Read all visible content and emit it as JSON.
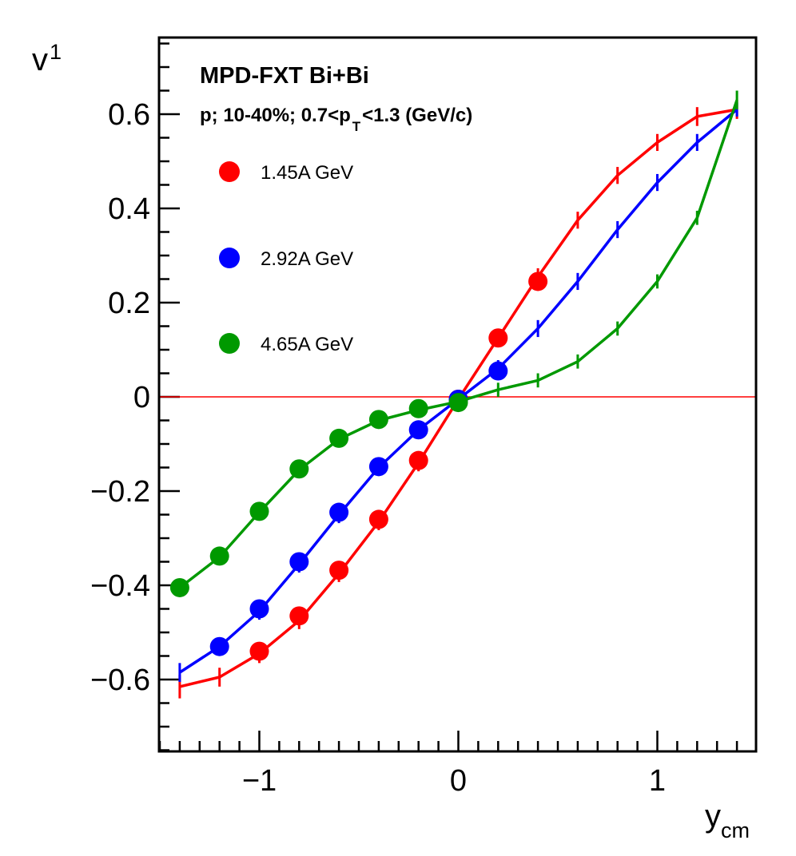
{
  "chart_data": {
    "type": "line",
    "title": "MPD-FXT Bi+Bi",
    "subtitle": {
      "prefix": "p; 10-40%; 0.7<p",
      "sub": "T",
      "suffix": "<1.3 (GeV/c)"
    },
    "xlabel": {
      "main": "y",
      "sub": "cm"
    },
    "ylabel": {
      "main": "v",
      "sub": "1"
    },
    "xlim": [
      -1.5,
      1.5
    ],
    "ylim": [
      -0.75,
      0.75
    ],
    "xticks": [
      -1,
      0,
      1
    ],
    "xtick_labels": [
      "−1",
      "0",
      "1"
    ],
    "yticks": [
      -0.6,
      -0.4,
      -0.2,
      0,
      0.2,
      0.4,
      0.6
    ],
    "ytick_labels": [
      "−0.6",
      "−0.4",
      "−0.2",
      "0",
      "0.2",
      "0.4",
      "0.6"
    ],
    "reference_line": {
      "y": 0,
      "color": "#ff0000"
    },
    "legend_position": "top-left",
    "series": [
      {
        "name": "1.45A GeV",
        "color": "#ff0000",
        "curve": {
          "x": [
            -1.4,
            -1.2,
            -1.0,
            -0.8,
            -0.6,
            -0.4,
            -0.2,
            0.0,
            0.2,
            0.4,
            0.6,
            0.8,
            1.0,
            1.2,
            1.4
          ],
          "y": [
            -0.615,
            -0.595,
            -0.545,
            -0.475,
            -0.375,
            -0.265,
            -0.14,
            -0.005,
            0.125,
            0.255,
            0.375,
            0.47,
            0.54,
            0.595,
            0.61
          ],
          "err": [
            0.025,
            0.02,
            0.02,
            0.018,
            0.018,
            0.018,
            0.018,
            0.015,
            0.018,
            0.018,
            0.018,
            0.018,
            0.018,
            0.02,
            0.02
          ]
        },
        "markers": {
          "x": [
            -1.0,
            -0.8,
            -0.6,
            -0.4,
            -0.2,
            0.0,
            0.2,
            0.4
          ],
          "y": [
            -0.54,
            -0.465,
            -0.368,
            -0.26,
            -0.135,
            -0.005,
            0.125,
            0.245
          ]
        }
      },
      {
        "name": "2.92A GeV",
        "color": "#0000ff",
        "curve": {
          "x": [
            -1.4,
            -1.2,
            -1.0,
            -0.8,
            -0.6,
            -0.4,
            -0.2,
            0.0,
            0.2,
            0.4,
            0.6,
            0.8,
            1.0,
            1.2,
            1.4
          ],
          "y": [
            -0.585,
            -0.53,
            -0.455,
            -0.355,
            -0.25,
            -0.15,
            -0.07,
            -0.005,
            0.06,
            0.145,
            0.245,
            0.355,
            0.455,
            0.54,
            0.61
          ],
          "err": [
            0.02,
            0.018,
            0.018,
            0.018,
            0.018,
            0.018,
            0.018,
            0.015,
            0.018,
            0.018,
            0.018,
            0.018,
            0.018,
            0.018,
            0.015
          ]
        },
        "markers": {
          "x": [
            -1.2,
            -1.0,
            -0.8,
            -0.6,
            -0.4,
            -0.2,
            0.0,
            0.2
          ],
          "y": [
            -0.53,
            -0.45,
            -0.35,
            -0.245,
            -0.148,
            -0.07,
            -0.005,
            0.055
          ]
        }
      },
      {
        "name": "4.65A GeV",
        "color": "#009900",
        "curve": {
          "x": [
            -1.4,
            -1.2,
            -1.0,
            -0.8,
            -0.6,
            -0.4,
            -0.2,
            0.0,
            0.2,
            0.4,
            0.6,
            0.8,
            1.0,
            1.2,
            1.4
          ],
          "y": [
            -0.405,
            -0.34,
            -0.245,
            -0.155,
            -0.09,
            -0.05,
            -0.028,
            -0.01,
            0.015,
            0.035,
            0.075,
            0.145,
            0.245,
            0.38,
            0.63
          ],
          "err": [
            0.015,
            0.015,
            0.015,
            0.015,
            0.015,
            0.015,
            0.015,
            0.015,
            0.015,
            0.015,
            0.015,
            0.015,
            0.015,
            0.015,
            0.02
          ]
        },
        "markers": {
          "x": [
            -1.4,
            -1.2,
            -1.0,
            -0.8,
            -0.6,
            -0.4,
            -0.2,
            0.0
          ],
          "y": [
            -0.405,
            -0.338,
            -0.243,
            -0.153,
            -0.088,
            -0.048,
            -0.025,
            -0.012
          ]
        }
      }
    ]
  }
}
